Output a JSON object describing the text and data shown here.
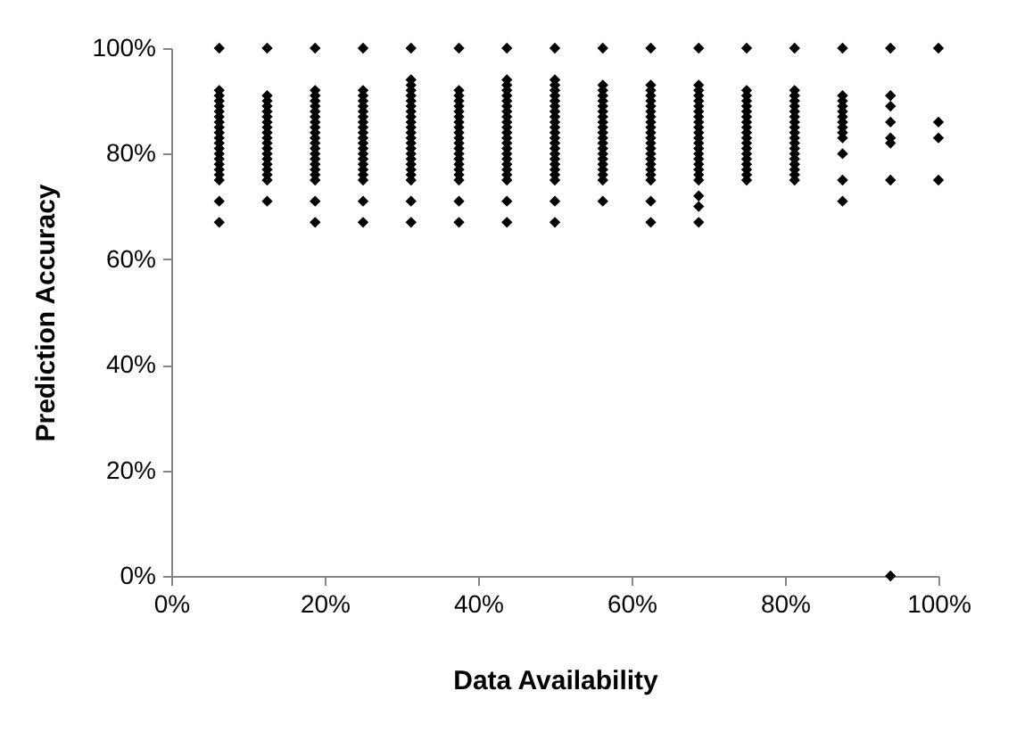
{
  "chart_data": {
    "type": "scatter",
    "xlabel": "Data Availability",
    "ylabel": "Prediction Accuracy",
    "marker": "diamond",
    "grid": false,
    "xlim": [
      0,
      1
    ],
    "ylim": [
      0,
      1
    ],
    "xticks": [
      {
        "value": 0,
        "label": "0%"
      },
      {
        "value": 0.2,
        "label": "20%"
      },
      {
        "value": 0.4,
        "label": "40%"
      },
      {
        "value": 0.6,
        "label": "60%"
      },
      {
        "value": 0.8,
        "label": "80%"
      },
      {
        "value": 1,
        "label": "100%"
      }
    ],
    "yticks": [
      {
        "value": 0,
        "label": "0%"
      },
      {
        "value": 0.2,
        "label": "20%"
      },
      {
        "value": 0.4,
        "label": "40%"
      },
      {
        "value": 0.6,
        "label": "60%"
      },
      {
        "value": 0.8,
        "label": "80%"
      },
      {
        "value": 1,
        "label": "100%"
      }
    ],
    "series": [
      {
        "color": "#000000",
        "x": [
          0.0625,
          0.0625,
          0.0625,
          0.0625,
          0.0625,
          0.0625,
          0.0625,
          0.0625,
          0.0625,
          0.0625,
          0.0625,
          0.0625,
          0.0625,
          0.0625,
          0.0625,
          0.0625,
          0.0625,
          0.0625,
          0.0625,
          0.0625,
          0.0625,
          0.125,
          0.125,
          0.125,
          0.125,
          0.125,
          0.125,
          0.125,
          0.125,
          0.125,
          0.125,
          0.125,
          0.125,
          0.125,
          0.125,
          0.125,
          0.125,
          0.125,
          0.125,
          0.125,
          0.1875,
          0.1875,
          0.1875,
          0.1875,
          0.1875,
          0.1875,
          0.1875,
          0.1875,
          0.1875,
          0.1875,
          0.1875,
          0.1875,
          0.1875,
          0.1875,
          0.1875,
          0.1875,
          0.1875,
          0.1875,
          0.1875,
          0.1875,
          0.1875,
          0.25,
          0.25,
          0.25,
          0.25,
          0.25,
          0.25,
          0.25,
          0.25,
          0.25,
          0.25,
          0.25,
          0.25,
          0.25,
          0.25,
          0.25,
          0.25,
          0.25,
          0.25,
          0.25,
          0.25,
          0.25,
          0.3125,
          0.3125,
          0.3125,
          0.3125,
          0.3125,
          0.3125,
          0.3125,
          0.3125,
          0.3125,
          0.3125,
          0.3125,
          0.3125,
          0.3125,
          0.3125,
          0.3125,
          0.3125,
          0.3125,
          0.3125,
          0.3125,
          0.3125,
          0.3125,
          0.3125,
          0.3125,
          0.375,
          0.375,
          0.375,
          0.375,
          0.375,
          0.375,
          0.375,
          0.375,
          0.375,
          0.375,
          0.375,
          0.375,
          0.375,
          0.375,
          0.375,
          0.375,
          0.375,
          0.375,
          0.375,
          0.375,
          0.375,
          0.4375,
          0.4375,
          0.4375,
          0.4375,
          0.4375,
          0.4375,
          0.4375,
          0.4375,
          0.4375,
          0.4375,
          0.4375,
          0.4375,
          0.4375,
          0.4375,
          0.4375,
          0.4375,
          0.4375,
          0.4375,
          0.4375,
          0.4375,
          0.4375,
          0.4375,
          0.4375,
          0.5,
          0.5,
          0.5,
          0.5,
          0.5,
          0.5,
          0.5,
          0.5,
          0.5,
          0.5,
          0.5,
          0.5,
          0.5,
          0.5,
          0.5,
          0.5,
          0.5,
          0.5,
          0.5,
          0.5,
          0.5,
          0.5,
          0.5,
          0.5625,
          0.5625,
          0.5625,
          0.5625,
          0.5625,
          0.5625,
          0.5625,
          0.5625,
          0.5625,
          0.5625,
          0.5625,
          0.5625,
          0.5625,
          0.5625,
          0.5625,
          0.5625,
          0.5625,
          0.5625,
          0.5625,
          0.5625,
          0.5625,
          0.625,
          0.625,
          0.625,
          0.625,
          0.625,
          0.625,
          0.625,
          0.625,
          0.625,
          0.625,
          0.625,
          0.625,
          0.625,
          0.625,
          0.625,
          0.625,
          0.625,
          0.625,
          0.625,
          0.625,
          0.625,
          0.625,
          0.6875,
          0.6875,
          0.6875,
          0.6875,
          0.6875,
          0.6875,
          0.6875,
          0.6875,
          0.6875,
          0.6875,
          0.6875,
          0.6875,
          0.6875,
          0.6875,
          0.6875,
          0.6875,
          0.6875,
          0.6875,
          0.6875,
          0.6875,
          0.6875,
          0.6875,
          0.6875,
          0.75,
          0.75,
          0.75,
          0.75,
          0.75,
          0.75,
          0.75,
          0.75,
          0.75,
          0.75,
          0.75,
          0.75,
          0.75,
          0.75,
          0.75,
          0.75,
          0.75,
          0.75,
          0.75,
          0.8125,
          0.8125,
          0.8125,
          0.8125,
          0.8125,
          0.8125,
          0.8125,
          0.8125,
          0.8125,
          0.8125,
          0.8125,
          0.8125,
          0.8125,
          0.8125,
          0.8125,
          0.8125,
          0.8125,
          0.8125,
          0.8125,
          0.875,
          0.875,
          0.875,
          0.875,
          0.875,
          0.875,
          0.875,
          0.875,
          0.875,
          0.875,
          0.875,
          0.875,
          0.875,
          0.9375,
          0.9375,
          0.9375,
          0.9375,
          0.9375,
          0.9375,
          0.9375,
          0.9375,
          1,
          1,
          1,
          1
        ],
        "values": [
          1,
          0.92,
          0.91,
          0.9,
          0.89,
          0.88,
          0.87,
          0.86,
          0.85,
          0.84,
          0.83,
          0.82,
          0.81,
          0.8,
          0.79,
          0.78,
          0.77,
          0.76,
          0.75,
          0.71,
          0.67,
          1,
          0.91,
          0.9,
          0.89,
          0.88,
          0.87,
          0.86,
          0.85,
          0.84,
          0.83,
          0.82,
          0.81,
          0.8,
          0.79,
          0.78,
          0.77,
          0.76,
          0.75,
          0.71,
          1,
          0.92,
          0.91,
          0.9,
          0.89,
          0.88,
          0.87,
          0.86,
          0.85,
          0.84,
          0.83,
          0.82,
          0.81,
          0.8,
          0.79,
          0.78,
          0.77,
          0.76,
          0.75,
          0.71,
          0.67,
          1,
          0.92,
          0.91,
          0.9,
          0.89,
          0.88,
          0.87,
          0.86,
          0.85,
          0.84,
          0.83,
          0.82,
          0.81,
          0.8,
          0.79,
          0.78,
          0.77,
          0.76,
          0.75,
          0.71,
          0.67,
          1,
          0.94,
          0.93,
          0.92,
          0.91,
          0.9,
          0.89,
          0.88,
          0.87,
          0.86,
          0.85,
          0.84,
          0.83,
          0.82,
          0.81,
          0.8,
          0.79,
          0.78,
          0.77,
          0.76,
          0.75,
          0.71,
          0.67,
          1,
          0.92,
          0.91,
          0.9,
          0.89,
          0.88,
          0.87,
          0.86,
          0.85,
          0.84,
          0.83,
          0.82,
          0.81,
          0.8,
          0.79,
          0.78,
          0.77,
          0.76,
          0.75,
          0.71,
          0.67,
          1,
          0.94,
          0.93,
          0.92,
          0.91,
          0.9,
          0.89,
          0.88,
          0.87,
          0.86,
          0.85,
          0.84,
          0.83,
          0.82,
          0.81,
          0.8,
          0.79,
          0.78,
          0.77,
          0.76,
          0.75,
          0.71,
          0.67,
          1,
          0.94,
          0.93,
          0.92,
          0.91,
          0.9,
          0.89,
          0.88,
          0.87,
          0.86,
          0.85,
          0.84,
          0.83,
          0.82,
          0.81,
          0.8,
          0.79,
          0.78,
          0.77,
          0.76,
          0.75,
          0.71,
          0.67,
          1,
          0.93,
          0.92,
          0.91,
          0.9,
          0.89,
          0.88,
          0.87,
          0.86,
          0.85,
          0.84,
          0.83,
          0.82,
          0.81,
          0.8,
          0.79,
          0.78,
          0.77,
          0.76,
          0.75,
          0.71,
          1,
          0.93,
          0.92,
          0.91,
          0.9,
          0.89,
          0.88,
          0.87,
          0.86,
          0.85,
          0.84,
          0.83,
          0.82,
          0.81,
          0.8,
          0.79,
          0.78,
          0.77,
          0.76,
          0.75,
          0.71,
          0.67,
          1,
          0.93,
          0.92,
          0.91,
          0.9,
          0.89,
          0.88,
          0.87,
          0.86,
          0.85,
          0.84,
          0.83,
          0.82,
          0.81,
          0.8,
          0.79,
          0.78,
          0.77,
          0.76,
          0.75,
          0.72,
          0.7,
          0.67,
          1,
          0.92,
          0.91,
          0.9,
          0.89,
          0.88,
          0.87,
          0.86,
          0.85,
          0.84,
          0.83,
          0.82,
          0.81,
          0.8,
          0.79,
          0.78,
          0.77,
          0.76,
          0.75,
          1,
          0.92,
          0.91,
          0.9,
          0.89,
          0.88,
          0.87,
          0.86,
          0.85,
          0.84,
          0.83,
          0.82,
          0.81,
          0.8,
          0.79,
          0.78,
          0.77,
          0.76,
          0.75,
          1,
          0.91,
          0.9,
          0.89,
          0.88,
          0.87,
          0.86,
          0.85,
          0.84,
          0.83,
          0.8,
          0.75,
          0.71,
          1,
          0.91,
          0.89,
          0.86,
          0.83,
          0.82,
          0.75,
          0,
          1,
          0.86,
          0.83,
          0.75
        ]
      }
    ]
  }
}
